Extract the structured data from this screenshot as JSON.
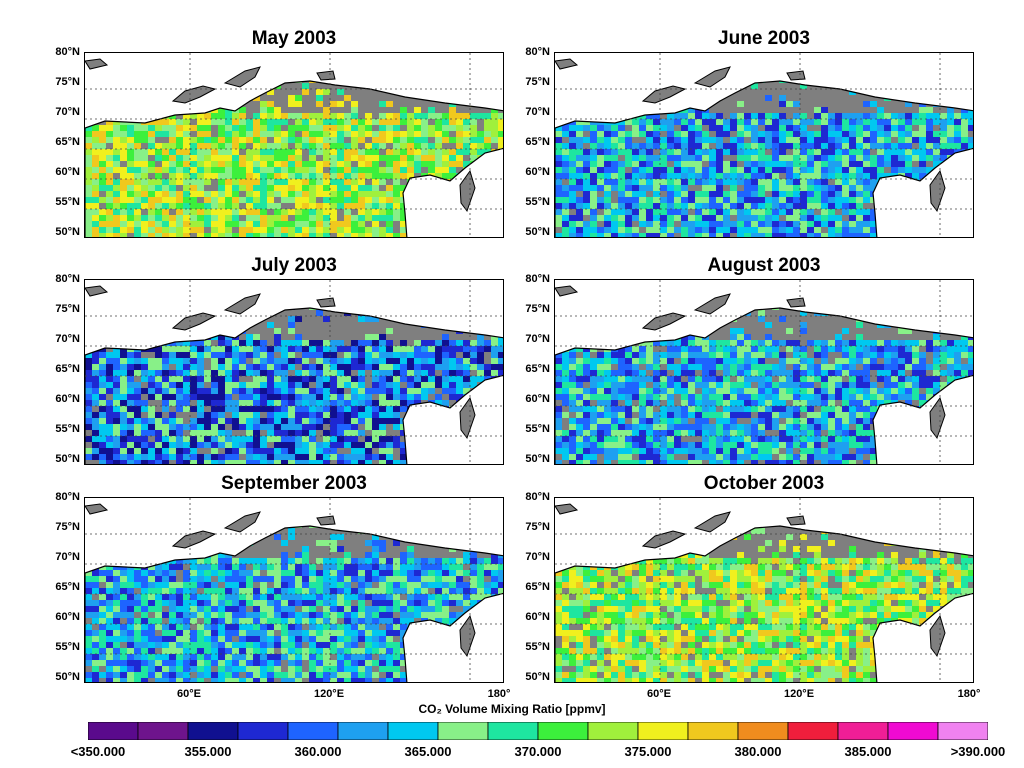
{
  "panels": [
    {
      "title": "May 2003",
      "regime": "warm"
    },
    {
      "title": "June 2003",
      "regime": "cool"
    },
    {
      "title": "July 2003",
      "regime": "cold"
    },
    {
      "title": "August 2003",
      "regime": "cool"
    },
    {
      "title": "September 2003",
      "regime": "cool"
    },
    {
      "title": "October 2003",
      "regime": "warm"
    }
  ],
  "lat_labels": [
    "80°N",
    "75°N",
    "70°N",
    "65°N",
    "60°N",
    "55°N",
    "50°N"
  ],
  "lon_labels": [
    "60°E",
    "120°E",
    "180°"
  ],
  "colorbar": {
    "title": "CO₂ Volume Mixing Ratio [ppmv]",
    "tick_labels": [
      "<350.000",
      "355.000",
      "360.000",
      "365.000",
      "370.000",
      "375.000",
      "380.000",
      "385.000",
      ">390.000"
    ],
    "colors": [
      "#5a0a8c",
      "#6e148c",
      "#101090",
      "#1e28d2",
      "#1e64ff",
      "#1ea0f0",
      "#00c8f0",
      "#88f088",
      "#1ee6a0",
      "#3cf03c",
      "#a0f03c",
      "#f0f01e",
      "#f0c81e",
      "#f08c1e",
      "#f01e3c",
      "#f01e96",
      "#f00ad2",
      "#f082f0"
    ]
  },
  "colors": {
    "land_no_data": "#7f7f7f",
    "ocean": "#ffffff"
  }
}
